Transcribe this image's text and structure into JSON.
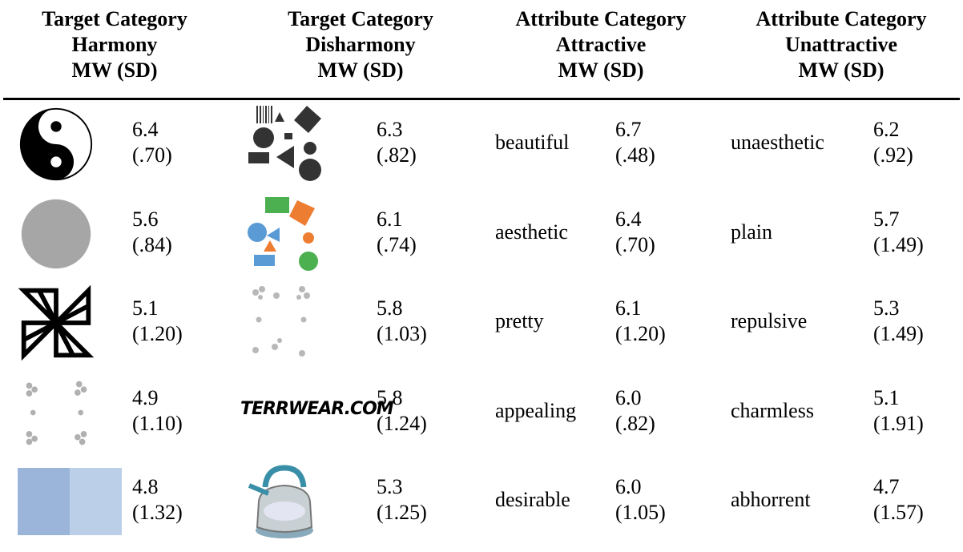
{
  "table": {
    "headers": [
      [
        "Target Category",
        "Harmony",
        "MW (SD)"
      ],
      [
        "Target Category",
        "Disharmony",
        "MW (SD)"
      ],
      [
        "Attribute Category",
        "Attractive",
        "MW (SD)"
      ],
      [
        "Attribute Category",
        "Unattractive",
        "MW (SD)"
      ]
    ],
    "rows": [
      {
        "harmony": {
          "mean": "6.4",
          "sd": "(.70)"
        },
        "disharmony": {
          "mean": "6.3",
          "sd": "(.82)"
        },
        "attractive": {
          "word": "beautiful",
          "mean": "6.7",
          "sd": "(.48)"
        },
        "unattractive": {
          "word": "unaesthetic",
          "mean": "6.2",
          "sd": "(.92)"
        }
      },
      {
        "harmony": {
          "mean": "5.6",
          "sd": "(.84)"
        },
        "disharmony": {
          "mean": "6.1",
          "sd": "(.74)"
        },
        "attractive": {
          "word": "aesthetic",
          "mean": "6.4",
          "sd": "(.70)"
        },
        "unattractive": {
          "word": "plain",
          "mean": "5.7",
          "sd": "(1.49)"
        }
      },
      {
        "harmony": {
          "mean": "5.1",
          "sd": "(1.20)"
        },
        "disharmony": {
          "mean": "5.8",
          "sd": "(1.03)"
        },
        "attractive": {
          "word": "pretty",
          "mean": "6.1",
          "sd": "(1.20)"
        },
        "unattractive": {
          "word": "repulsive",
          "mean": "5.3",
          "sd": "(1.49)"
        }
      },
      {
        "harmony": {
          "mean": "4.9",
          "sd": "(1.10)"
        },
        "disharmony": {
          "logo": "TERRWEAR.COM",
          "mean": "5.8",
          "sd": "(1.24)"
        },
        "attractive": {
          "word": "appealing",
          "mean": "6.0",
          "sd": "(.82)"
        },
        "unattractive": {
          "word": "charmless",
          "mean": "5.1",
          "sd": "(1.91)"
        }
      },
      {
        "harmony": {
          "mean": "4.8",
          "sd": "(1.32)"
        },
        "disharmony": {
          "mean": "5.3",
          "sd": "(1.25)"
        },
        "attractive": {
          "word": "desirable",
          "mean": "6.0",
          "sd": "(1.05)"
        },
        "unattractive": {
          "word": "abhorrent",
          "mean": "4.7",
          "sd": "(1.57)"
        }
      }
    ]
  }
}
